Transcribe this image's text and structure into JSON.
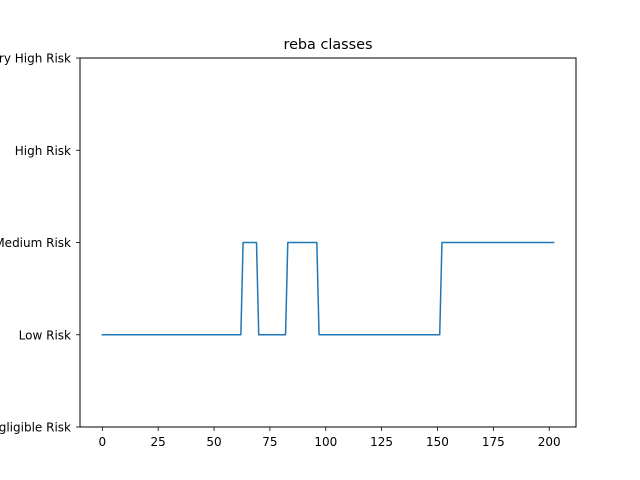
{
  "chart_data": {
    "type": "line",
    "title": "reba classes",
    "xlabel": "",
    "ylabel": "",
    "xlim": [
      -10,
      212
    ],
    "ylim": [
      0,
      4
    ],
    "x_ticks": [
      0,
      25,
      50,
      75,
      100,
      125,
      150,
      175,
      200
    ],
    "y_ticks": [
      {
        "value": 0,
        "label": "Negligible Risk"
      },
      {
        "value": 1,
        "label": "Low Risk"
      },
      {
        "value": 2,
        "label": "Medium Risk"
      },
      {
        "value": 3,
        "label": "High Risk"
      },
      {
        "value": 4,
        "label": "Very High Risk"
      }
    ],
    "grid": false,
    "series": [
      {
        "color": "#1f77b4",
        "points": [
          [
            0,
            1
          ],
          [
            62,
            1
          ],
          [
            63,
            2
          ],
          [
            69,
            2
          ],
          [
            70,
            1
          ],
          [
            82,
            1
          ],
          [
            83,
            2
          ],
          [
            96,
            2
          ],
          [
            97,
            1
          ],
          [
            151,
            1
          ],
          [
            152,
            2
          ],
          [
            202,
            2
          ]
        ]
      }
    ]
  }
}
